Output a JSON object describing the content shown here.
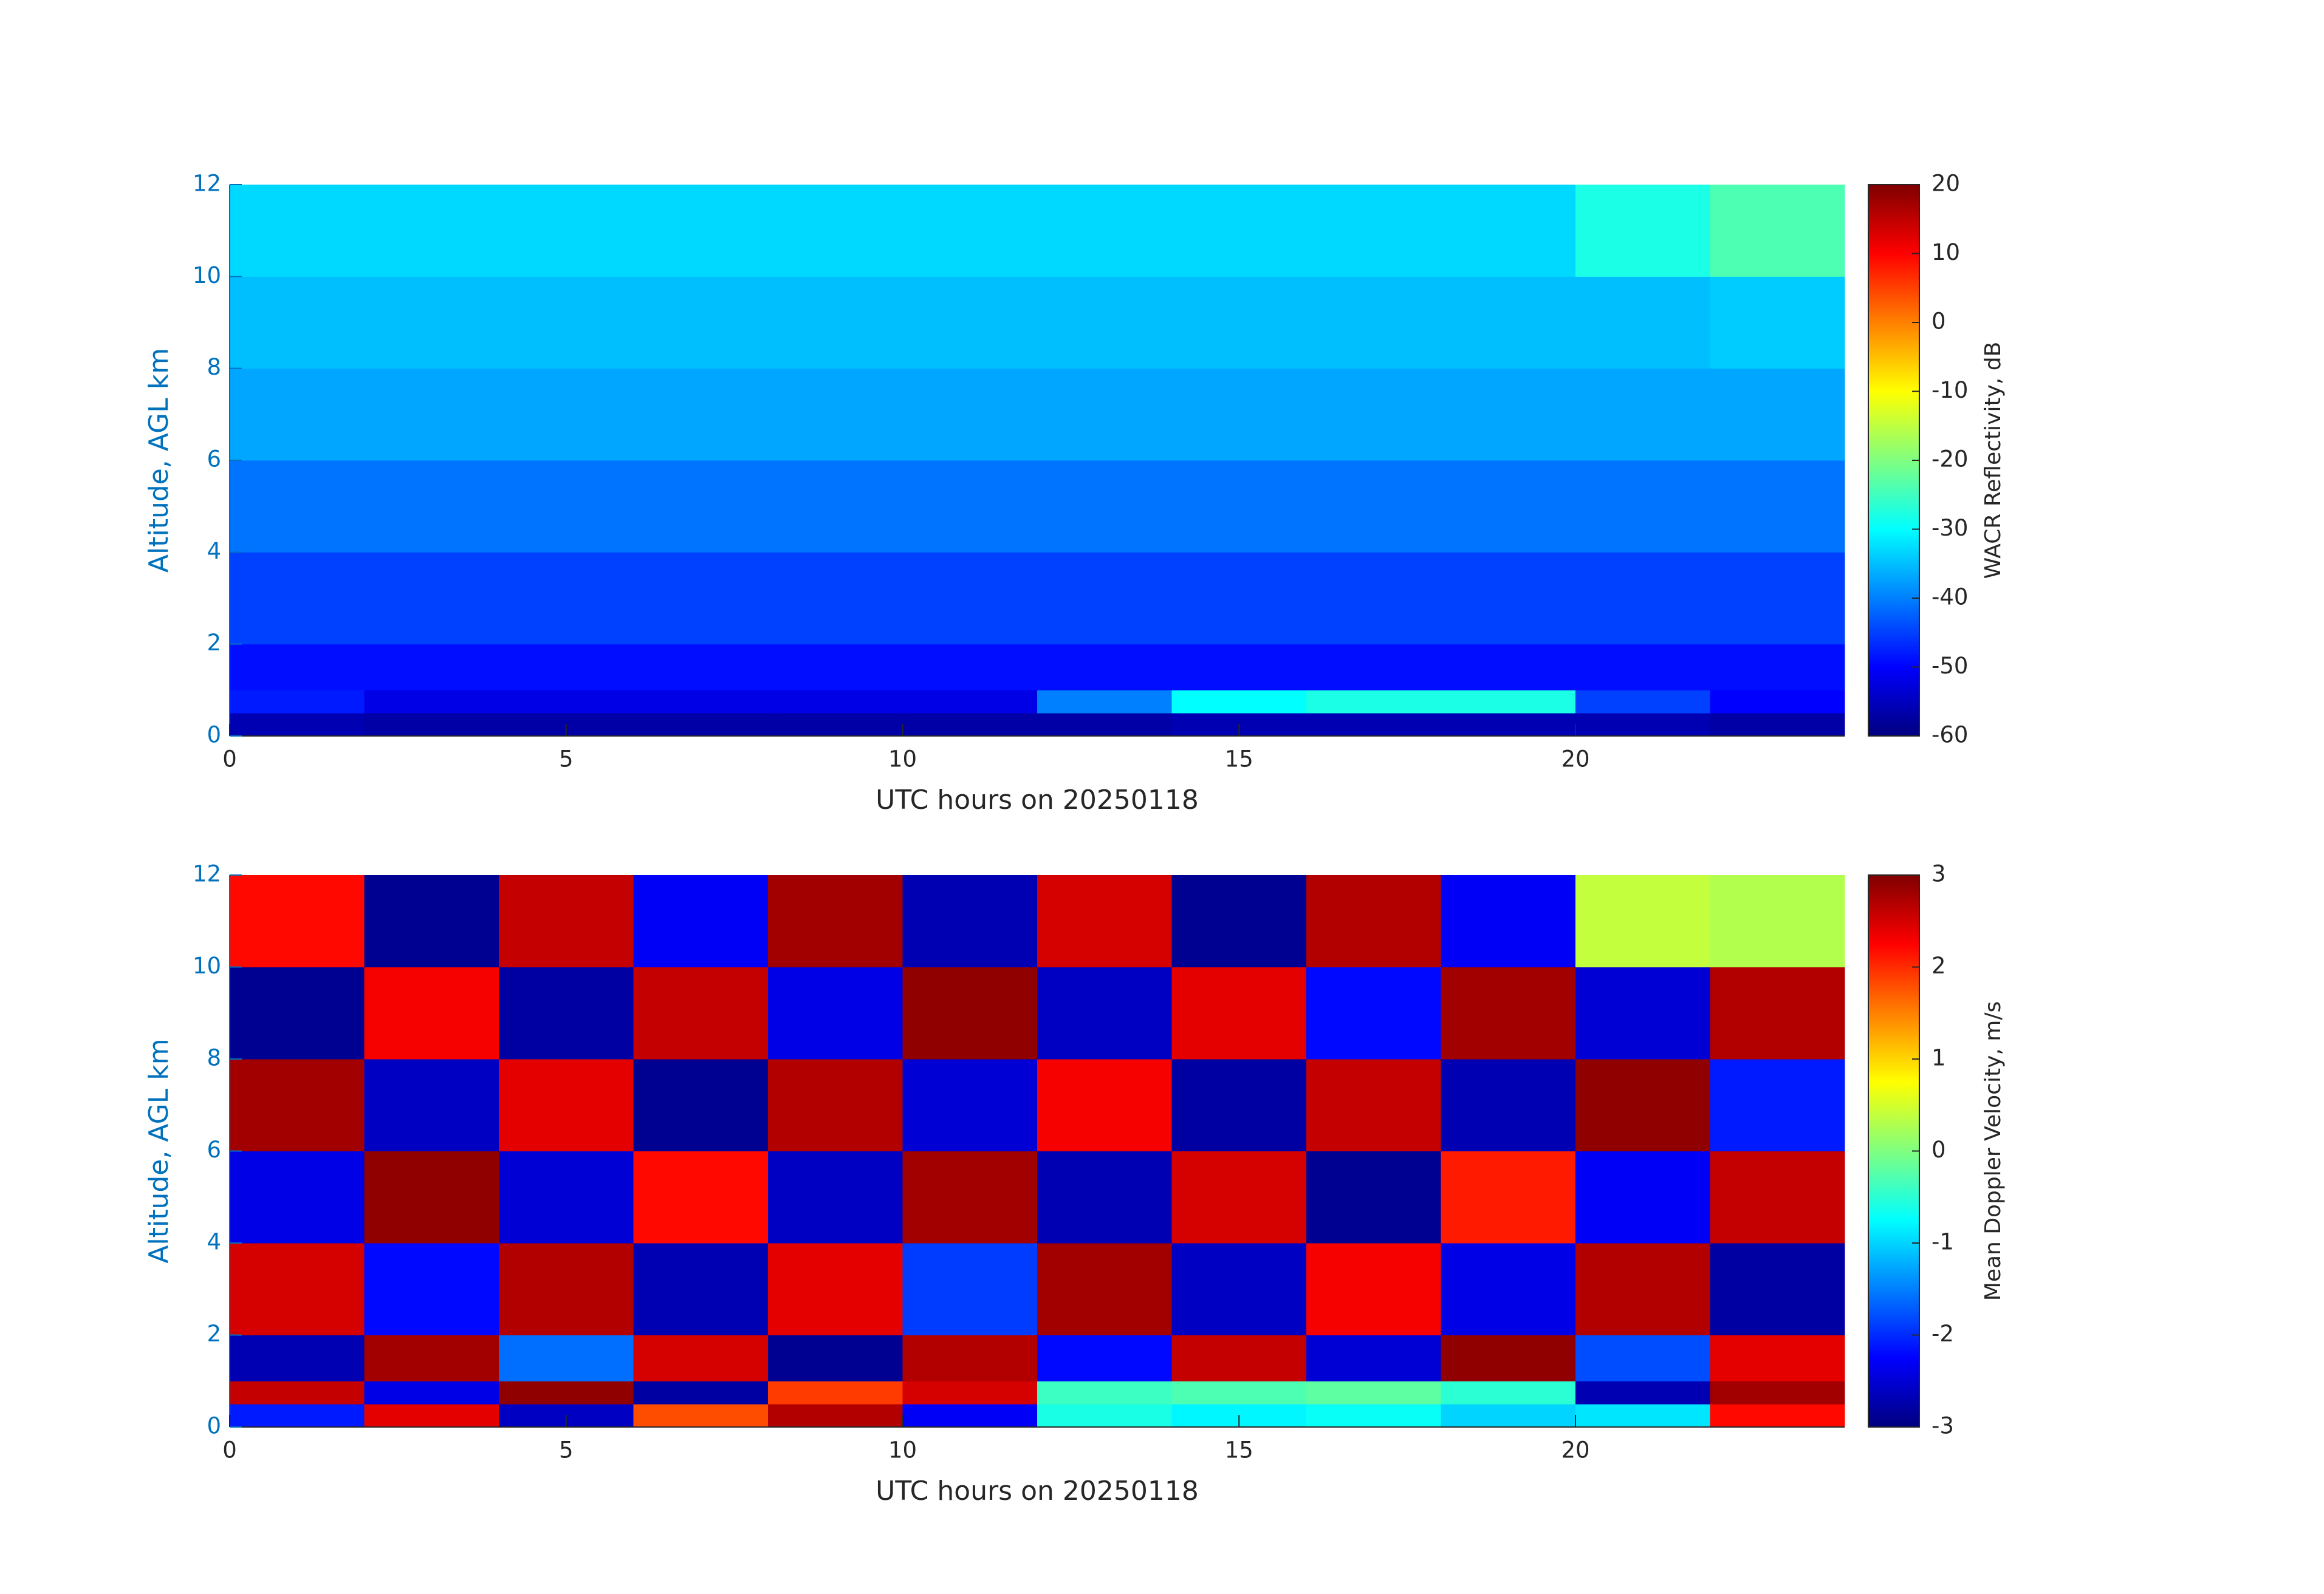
{
  "chart_data": [
    {
      "type": "heatmap",
      "xlabel": "UTC hours on 20250118",
      "ylabel": "Altitude, AGL km",
      "xlim": [
        0,
        24
      ],
      "ylim": [
        0,
        12
      ],
      "xticks": [
        0,
        5,
        10,
        15,
        20
      ],
      "yticks": [
        0,
        2,
        4,
        6,
        8,
        10,
        12
      ],
      "x_edges": [
        0,
        2,
        4,
        6,
        8,
        10,
        12,
        14,
        16,
        18,
        20,
        22,
        24
      ],
      "y_edges": [
        0,
        0.5,
        1,
        2,
        4,
        6,
        8,
        10,
        12
      ],
      "values": [
        [
          -56,
          -57,
          -57,
          -57,
          -57,
          -57,
          -57,
          -56,
          -56,
          -56,
          -56,
          -57
        ],
        [
          -48,
          -52,
          -52,
          -52,
          -52,
          -52,
          -40,
          -30,
          -28,
          -28,
          -45,
          -50
        ],
        [
          -49,
          -49,
          -49,
          -49,
          -49,
          -49,
          -49,
          -49,
          -49,
          -49,
          -49,
          -49
        ],
        [
          -45,
          -45,
          -45,
          -45,
          -45,
          -45,
          -45,
          -45,
          -45,
          -45,
          -45,
          -45
        ],
        [
          -41,
          -41,
          -41,
          -41,
          -41,
          -41,
          -41,
          -41,
          -41,
          -41,
          -41,
          -41
        ],
        [
          -37,
          -37,
          -37,
          -37,
          -37,
          -37,
          -37,
          -37,
          -37,
          -37,
          -37,
          -37
        ],
        [
          -35,
          -35,
          -35,
          -35,
          -35,
          -35,
          -35,
          -35,
          -35,
          -35,
          -35,
          -34
        ],
        [
          -33,
          -33,
          -33,
          -33,
          -33,
          -33,
          -33,
          -33,
          -33,
          -33,
          -28,
          -24
        ]
      ],
      "colormap": "jet",
      "colorbar_label": "WACR Reflectivity, dB",
      "clim": [
        -60,
        20
      ],
      "cticks": [
        -60,
        -50,
        -40,
        -30,
        -20,
        -10,
        0,
        10,
        20
      ]
    },
    {
      "type": "heatmap",
      "xlabel": "UTC hours on 20250118",
      "ylabel": "Altitude, AGL km",
      "xlim": [
        0,
        24
      ],
      "ylim": [
        0,
        12
      ],
      "xticks": [
        0,
        5,
        10,
        15,
        20
      ],
      "yticks": [
        0,
        2,
        4,
        6,
        8,
        10,
        12
      ],
      "x_edges": [
        0,
        2,
        4,
        6,
        8,
        10,
        12,
        14,
        16,
        18,
        20,
        22,
        24
      ],
      "y_edges": [
        0,
        0.5,
        1,
        2,
        4,
        6,
        8,
        10,
        12
      ],
      "values": [
        [
          -2.1,
          2.4,
          -2.6,
          1.8,
          2.7,
          -2.3,
          -0.6,
          -0.8,
          -0.7,
          -1.0,
          -0.9,
          2.2
        ],
        [
          2.6,
          -2.4,
          2.9,
          -2.8,
          1.9,
          2.5,
          -0.4,
          -0.3,
          -0.2,
          -0.5,
          -2.7,
          2.8
        ],
        [
          -2.7,
          2.8,
          -1.6,
          2.5,
          -2.9,
          2.7,
          -2.2,
          2.6,
          -2.5,
          2.9,
          -1.8,
          2.4
        ],
        [
          2.5,
          -2.2,
          2.7,
          -2.7,
          2.4,
          -1.9,
          2.8,
          -2.6,
          2.3,
          -2.4,
          2.7,
          -2.8
        ],
        [
          -2.4,
          2.9,
          -2.5,
          2.2,
          -2.6,
          2.8,
          -2.7,
          2.5,
          -2.9,
          2.1,
          -2.3,
          2.6
        ],
        [
          2.8,
          -2.6,
          2.4,
          -2.9,
          2.7,
          -2.5,
          2.3,
          -2.8,
          2.6,
          -2.7,
          2.9,
          -2.1
        ],
        [
          -2.9,
          2.3,
          -2.8,
          2.6,
          -2.4,
          2.9,
          -2.6,
          2.4,
          -2.2,
          2.8,
          -2.5,
          2.7
        ],
        [
          2.2,
          -2.9,
          2.6,
          -2.3,
          2.8,
          -2.7,
          2.5,
          -2.9,
          2.7,
          -2.3,
          0.4,
          0.3
        ]
      ],
      "colormap": "jet",
      "colorbar_label": "Mean Doppler Velocity, m/s",
      "clim": [
        -3,
        3
      ],
      "cticks": [
        -3,
        -2,
        -1,
        0,
        1,
        2,
        3
      ]
    }
  ]
}
